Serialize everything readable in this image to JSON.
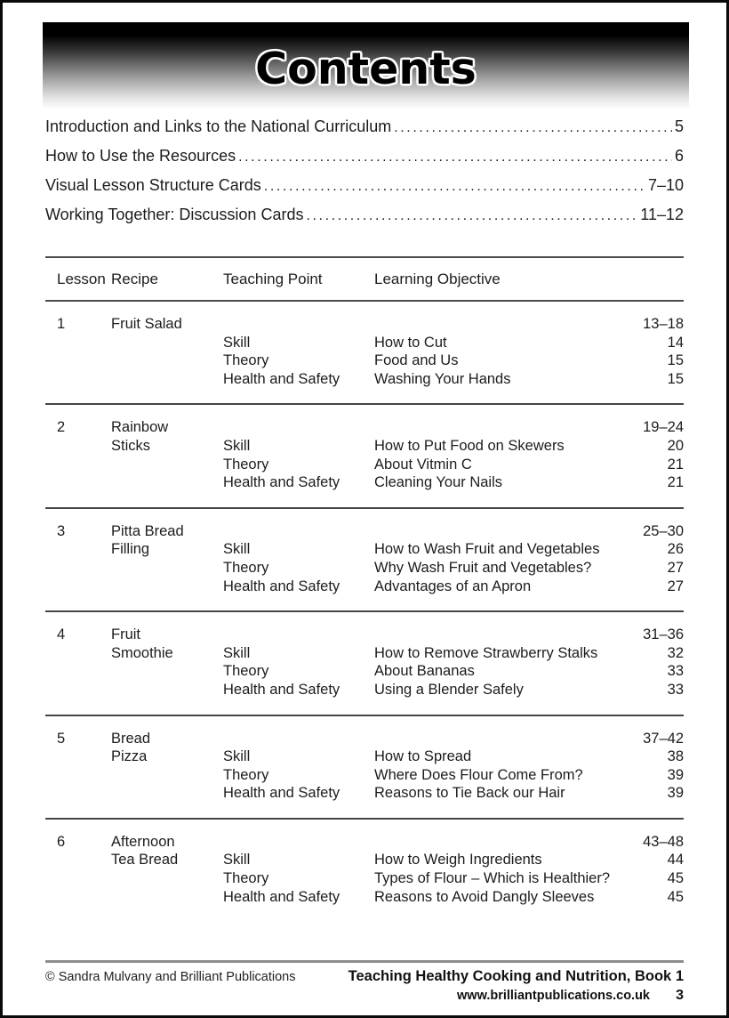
{
  "banner": {
    "title": "Contents"
  },
  "front_matter": [
    {
      "label": "Introduction and Links to the National Curriculum",
      "pages": "5"
    },
    {
      "label": "How to Use the Resources",
      "pages": "6"
    },
    {
      "label": "Visual Lesson Structure Cards",
      "pages": "7–10"
    },
    {
      "label": "Working Together: Discussion Cards",
      "pages": "11–12"
    }
  ],
  "table": {
    "headers": {
      "lesson": "Lesson",
      "recipe": "Recipe",
      "teaching_point": "Teaching Point",
      "learning_objective": "Learning Objective"
    },
    "lessons": [
      {
        "number": "1",
        "recipe_line1": "Fruit Salad",
        "recipe_line2": "",
        "pages": "13–18",
        "rows": [
          {
            "point": "Skill",
            "objective": "How to Cut",
            "page": "14"
          },
          {
            "point": "Theory",
            "objective": "Food and Us",
            "page": "15"
          },
          {
            "point": "Health and Safety",
            "objective": "Washing Your Hands",
            "page": "15"
          }
        ]
      },
      {
        "number": "2",
        "recipe_line1": "Rainbow",
        "recipe_line2": "Sticks",
        "pages": "19–24",
        "rows": [
          {
            "point": "Skill",
            "objective": "How to Put Food on Skewers",
            "page": "20"
          },
          {
            "point": "Theory",
            "objective": "About Vitmin C",
            "page": "21"
          },
          {
            "point": "Health and Safety",
            "objective": "Cleaning Your Nails",
            "page": "21"
          }
        ]
      },
      {
        "number": "3",
        "recipe_line1": "Pitta Bread",
        "recipe_line2": "Filling",
        "pages": "25–30",
        "rows": [
          {
            "point": "Skill",
            "objective": "How to Wash Fruit and Vegetables",
            "page": "26"
          },
          {
            "point": "Theory",
            "objective": "Why Wash Fruit and Vegetables?",
            "page": "27"
          },
          {
            "point": "Health and Safety",
            "objective": "Advantages of an Apron",
            "page": "27"
          }
        ]
      },
      {
        "number": "4",
        "recipe_line1": "Fruit",
        "recipe_line2": "Smoothie",
        "pages": "31–36",
        "rows": [
          {
            "point": "Skill",
            "objective": "How to Remove Strawberry Stalks",
            "page": "32"
          },
          {
            "point": "Theory",
            "objective": "About Bananas",
            "page": "33"
          },
          {
            "point": "Health and Safety",
            "objective": "Using a Blender Safely",
            "page": "33"
          }
        ]
      },
      {
        "number": "5",
        "recipe_line1": "Bread",
        "recipe_line2": "Pizza",
        "pages": "37–42",
        "rows": [
          {
            "point": "Skill",
            "objective": "How to Spread",
            "page": "38"
          },
          {
            "point": "Theory",
            "objective": "Where Does Flour Come From?",
            "page": "39"
          },
          {
            "point": "Health and Safety",
            "objective": "Reasons to Tie Back our Hair",
            "page": "39"
          }
        ]
      },
      {
        "number": "6",
        "recipe_line1": "Afternoon",
        "recipe_line2": "Tea Bread",
        "pages": "43–48",
        "rows": [
          {
            "point": "Skill",
            "objective": "How to Weigh Ingredients",
            "page": "44"
          },
          {
            "point": "Theory",
            "objective": "Types of Flour – Which is Healthier?",
            "page": "45"
          },
          {
            "point": "Health and Safety",
            "objective": "Reasons to Avoid Dangly Sleeves",
            "page": "45"
          }
        ]
      }
    ]
  },
  "footer": {
    "copyright": "© Sandra Mulvany and Brilliant Publications",
    "book_title": "Teaching Healthy Cooking and Nutrition, Book 1",
    "website": "www.brilliantpublications.co.uk",
    "page_number": "3"
  }
}
